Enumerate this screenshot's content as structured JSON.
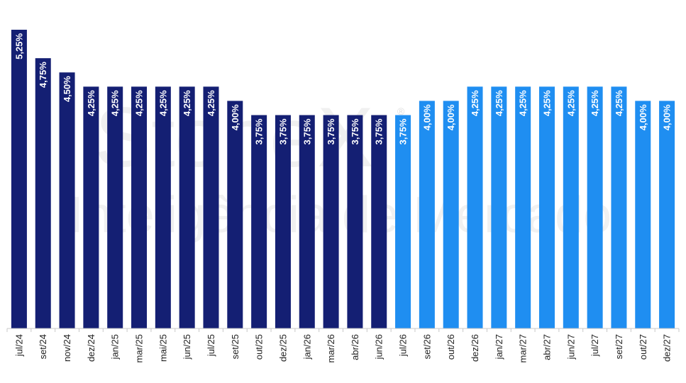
{
  "watermark": {
    "brand": "StoneX",
    "registered": "®",
    "tagline": "Inteligência de Mercado"
  },
  "colors": {
    "historical": "#141f73",
    "projected": "#1f8ef1",
    "axis": "#c8c8c8",
    "label_text": "#ffffff",
    "tick_text": "#222222",
    "watermark": "#d9d9d9"
  },
  "chart_data": {
    "type": "bar",
    "title": "",
    "xlabel": "",
    "ylabel": "",
    "ylim": [
      0,
      5.25
    ],
    "grid": false,
    "categories": [
      "jul/24",
      "set/24",
      "nov/24",
      "dez/24",
      "jan/25",
      "mar/25",
      "mai/25",
      "jun/25",
      "jul/25",
      "set/25",
      "out/25",
      "dez/25",
      "jan/26",
      "mar/26",
      "abr/26",
      "jun/26",
      "jul/26",
      "set/26",
      "out/26",
      "dez/26",
      "jan/27",
      "mar/27",
      "abr/27",
      "jun/27",
      "jul/27",
      "set/27",
      "out/27",
      "dez/27"
    ],
    "values": [
      5.25,
      4.75,
      4.5,
      4.25,
      4.25,
      4.25,
      4.25,
      4.25,
      4.25,
      4.0,
      3.75,
      3.75,
      3.75,
      3.75,
      3.75,
      3.75,
      3.75,
      4.0,
      4.0,
      4.25,
      4.25,
      4.25,
      4.25,
      4.25,
      4.25,
      4.25,
      4.0,
      4.0
    ],
    "data_labels": [
      "5,25%",
      "4,75%",
      "4,50%",
      "4,25%",
      "4,25%",
      "4,25%",
      "4,25%",
      "4,25%",
      "4,25%",
      "4,00%",
      "3,75%",
      "3,75%",
      "3,75%",
      "3,75%",
      "3,75%",
      "3,75%",
      "3,75%",
      "4,00%",
      "4,00%",
      "4,25%",
      "4,25%",
      "4,25%",
      "4,25%",
      "4,25%",
      "4,25%",
      "4,25%",
      "4,00%",
      "4,00%"
    ],
    "series_split": {
      "historical_count": 16,
      "projected_count": 12
    }
  }
}
